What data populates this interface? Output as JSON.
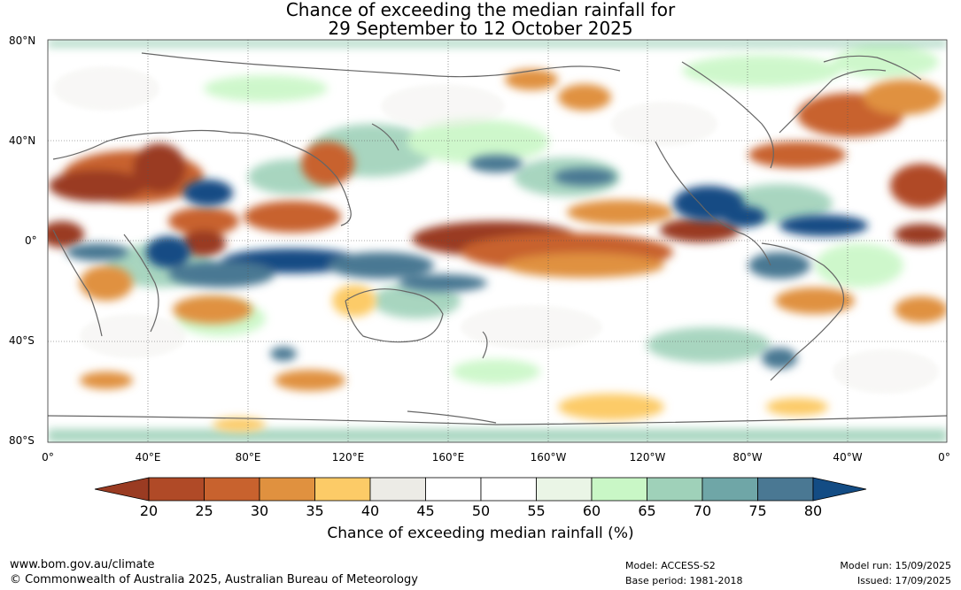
{
  "title": {
    "line1": "Chance of exceeding the median rainfall for",
    "line2": "29 September to 12 October 2025"
  },
  "lat_labels": [
    "80°N",
    "40°N",
    "0°",
    "40°S",
    "80°S"
  ],
  "lon_labels": [
    "0°",
    "40°E",
    "80°E",
    "120°E",
    "160°E",
    "160°W",
    "120°W",
    "80°W",
    "40°W",
    "0°"
  ],
  "colorbar": {
    "ticks": [
      "20",
      "25",
      "30",
      "35",
      "40",
      "45",
      "50",
      "55",
      "60",
      "65",
      "70",
      "75",
      "80"
    ],
    "colors": [
      "#9a3b22",
      "#b04a27",
      "#c8622e",
      "#e0913f",
      "#fccb67",
      "#ecebe6",
      "#ffffff",
      "#ffffff",
      "#eaf5e6",
      "#c9f7c6",
      "#9fd1b9",
      "#6fa6a7",
      "#4a7893",
      "#134c84"
    ],
    "label": "Chance of exceeding median rainfall (%)"
  },
  "footer": {
    "url": "www.bom.gov.au/climate",
    "copyright": "© Commonwealth of Australia 2025, Australian Bureau of Meteorology",
    "model": "Model: ACCESS-S2",
    "base_period": "Base period: 1981-2018",
    "model_run": "Model run: 15/09/2025",
    "issued": "Issued: 17/09/2025"
  }
}
